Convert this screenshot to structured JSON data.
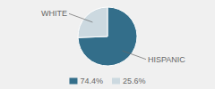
{
  "chart_data": {
    "type": "pie",
    "categories": [
      "HISPANIC",
      "WHITE"
    ],
    "values": [
      74.4,
      25.6
    ],
    "value_labels": [
      "74.4%",
      "25.6%"
    ],
    "colors": [
      "#336e8a",
      "#ccd9e0"
    ],
    "legend": "bottom"
  }
}
